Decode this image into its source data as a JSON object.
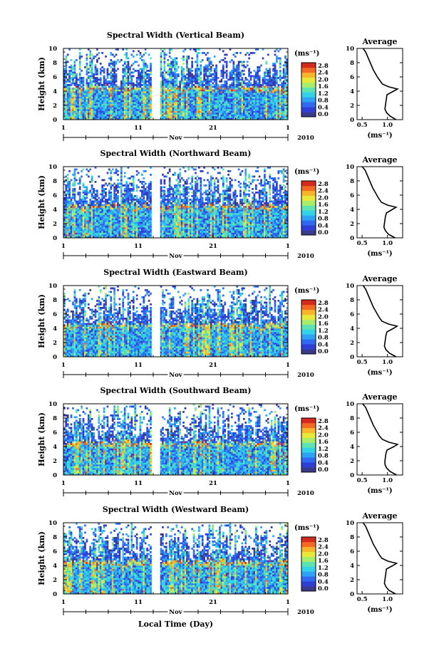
{
  "chart_data": [
    {
      "type": "heatmap",
      "title": "Spectral Width (Vertical Beam)",
      "ylabel": "Height (km)",
      "yticks": [
        "0",
        "2",
        "4",
        "6",
        "8",
        "10"
      ],
      "xticks": [
        "1",
        "11",
        "21",
        "1"
      ],
      "month": "Nov",
      "year": "2010",
      "colorbar": {
        "unit": "(ms⁻¹)",
        "ticks": [
          "0.0",
          "0.4",
          "0.8",
          "1.2",
          "1.6",
          "2.0",
          "2.4",
          "2.8"
        ]
      },
      "average": {
        "title": "Average",
        "xticks": [
          "0.5",
          "1.0"
        ],
        "xlabel": "(ms⁻¹)",
        "profile": [
          [
            0.0,
            1.17
          ],
          [
            0.5,
            1.05
          ],
          [
            1.0,
            0.98
          ],
          [
            1.5,
            0.95
          ],
          [
            2.0,
            0.96
          ],
          [
            2.5,
            0.97
          ],
          [
            3.0,
            0.98
          ],
          [
            3.5,
            0.99
          ],
          [
            4.0,
            1.12
          ],
          [
            4.3,
            1.2
          ],
          [
            4.6,
            1.03
          ],
          [
            5.0,
            0.9
          ],
          [
            5.5,
            0.85
          ],
          [
            6.0,
            0.8
          ],
          [
            6.5,
            0.76
          ],
          [
            7.0,
            0.72
          ],
          [
            7.5,
            0.69
          ],
          [
            8.0,
            0.66
          ],
          [
            8.5,
            0.63
          ],
          [
            9.0,
            0.6
          ],
          [
            9.5,
            0.57
          ],
          [
            10.0,
            0.52
          ]
        ]
      }
    },
    {
      "type": "heatmap",
      "title": "Spectral Width (Northward Beam)",
      "ylabel": "Height (km)",
      "yticks": [
        "0",
        "2",
        "4",
        "6",
        "8",
        "10"
      ],
      "xticks": [
        "1",
        "11",
        "21",
        "1"
      ],
      "month": "Nov",
      "year": "2010",
      "colorbar": {
        "unit": "(ms⁻¹)",
        "ticks": [
          "0.0",
          "0.4",
          "0.8",
          "1.2",
          "1.6",
          "2.0",
          "2.4",
          "2.8"
        ]
      },
      "average": {
        "title": "Average",
        "xticks": [
          "0.5",
          "1.0"
        ],
        "xlabel": "(ms⁻¹)",
        "profile": [
          [
            0.0,
            1.15
          ],
          [
            0.5,
            1.02
          ],
          [
            1.0,
            0.96
          ],
          [
            1.5,
            0.93
          ],
          [
            2.0,
            0.94
          ],
          [
            2.5,
            0.95
          ],
          [
            3.0,
            0.96
          ],
          [
            3.5,
            0.98
          ],
          [
            4.0,
            1.1
          ],
          [
            4.3,
            1.17
          ],
          [
            4.6,
            1.0
          ],
          [
            5.0,
            0.88
          ],
          [
            5.5,
            0.83
          ],
          [
            6.0,
            0.79
          ],
          [
            6.5,
            0.75
          ],
          [
            7.0,
            0.71
          ],
          [
            7.5,
            0.68
          ],
          [
            8.0,
            0.65
          ],
          [
            8.5,
            0.62
          ],
          [
            9.0,
            0.59
          ],
          [
            9.5,
            0.56
          ],
          [
            10.0,
            0.5
          ]
        ]
      }
    },
    {
      "type": "heatmap",
      "title": "Spectral Width (Eastward Beam)",
      "ylabel": "Height (km)",
      "yticks": [
        "0",
        "2",
        "4",
        "6",
        "8",
        "10"
      ],
      "xticks": [
        "1",
        "11",
        "21",
        "1"
      ],
      "month": "Nov",
      "year": "2010",
      "colorbar": {
        "unit": "(ms⁻¹)",
        "ticks": [
          "0.0",
          "0.4",
          "0.8",
          "1.2",
          "1.6",
          "2.0",
          "2.4",
          "2.8"
        ]
      },
      "average": {
        "title": "Average",
        "xticks": [
          "0.5",
          "1.0"
        ],
        "xlabel": "(ms⁻¹)",
        "profile": [
          [
            0.0,
            1.17
          ],
          [
            0.5,
            1.04
          ],
          [
            1.0,
            0.97
          ],
          [
            1.5,
            0.94
          ],
          [
            2.0,
            0.95
          ],
          [
            2.5,
            0.96
          ],
          [
            3.0,
            0.97
          ],
          [
            3.5,
            0.99
          ],
          [
            4.0,
            1.12
          ],
          [
            4.3,
            1.19
          ],
          [
            4.6,
            1.02
          ],
          [
            5.0,
            0.89
          ],
          [
            5.5,
            0.84
          ],
          [
            6.0,
            0.8
          ],
          [
            6.5,
            0.76
          ],
          [
            7.0,
            0.72
          ],
          [
            7.5,
            0.69
          ],
          [
            8.0,
            0.66
          ],
          [
            8.5,
            0.63
          ],
          [
            9.0,
            0.6
          ],
          [
            9.5,
            0.57
          ],
          [
            10.0,
            0.52
          ]
        ]
      }
    },
    {
      "type": "heatmap",
      "title": "Spectral Width (Southward Beam)",
      "ylabel": "Height (km)",
      "yticks": [
        "0",
        "2",
        "4",
        "6",
        "8",
        "10"
      ],
      "xticks": [
        "1",
        "11",
        "21",
        "1"
      ],
      "month": "Nov",
      "year": "2010",
      "colorbar": {
        "unit": "(ms⁻¹)",
        "ticks": [
          "0.0",
          "0.4",
          "0.8",
          "1.2",
          "1.6",
          "2.0",
          "2.4",
          "2.8"
        ]
      },
      "average": {
        "title": "Average",
        "xticks": [
          "0.5",
          "1.0"
        ],
        "xlabel": "(ms⁻¹)",
        "profile": [
          [
            0.0,
            1.18
          ],
          [
            0.5,
            1.05
          ],
          [
            1.0,
            0.98
          ],
          [
            1.5,
            0.95
          ],
          [
            2.0,
            0.95
          ],
          [
            2.5,
            0.96
          ],
          [
            3.0,
            0.97
          ],
          [
            3.5,
            0.99
          ],
          [
            4.0,
            1.13
          ],
          [
            4.3,
            1.2
          ],
          [
            4.6,
            1.03
          ],
          [
            5.0,
            0.9
          ],
          [
            5.5,
            0.84
          ],
          [
            6.0,
            0.8
          ],
          [
            6.5,
            0.76
          ],
          [
            7.0,
            0.72
          ],
          [
            7.5,
            0.69
          ],
          [
            8.0,
            0.66
          ],
          [
            8.5,
            0.63
          ],
          [
            9.0,
            0.6
          ],
          [
            9.5,
            0.57
          ],
          [
            10.0,
            0.51
          ]
        ]
      }
    },
    {
      "type": "heatmap",
      "title": "Spectral Width (Westward Beam)",
      "ylabel": "Height (km)",
      "yticks": [
        "0",
        "2",
        "4",
        "6",
        "8",
        "10"
      ],
      "xticks": [
        "1",
        "11",
        "21",
        "1"
      ],
      "month": "Nov",
      "year": "2010",
      "colorbar": {
        "unit": "(ms⁻¹)",
        "ticks": [
          "0.0",
          "0.4",
          "0.8",
          "1.2",
          "1.6",
          "2.0",
          "2.4",
          "2.8"
        ]
      },
      "average": {
        "title": "Average",
        "xticks": [
          "0.5",
          "1.0"
        ],
        "xlabel": "(ms⁻¹)",
        "profile": [
          [
            0.0,
            1.16
          ],
          [
            0.5,
            1.03
          ],
          [
            1.0,
            0.97
          ],
          [
            1.5,
            0.94
          ],
          [
            2.0,
            0.95
          ],
          [
            2.5,
            0.96
          ],
          [
            3.0,
            0.97
          ],
          [
            3.5,
            0.98
          ],
          [
            4.0,
            1.11
          ],
          [
            4.3,
            1.18
          ],
          [
            4.6,
            1.01
          ],
          [
            5.0,
            0.89
          ],
          [
            5.5,
            0.84
          ],
          [
            6.0,
            0.8
          ],
          [
            6.5,
            0.76
          ],
          [
            7.0,
            0.72
          ],
          [
            7.5,
            0.69
          ],
          [
            8.0,
            0.66
          ],
          [
            8.5,
            0.63
          ],
          [
            9.0,
            0.6
          ],
          [
            9.5,
            0.57
          ],
          [
            10.0,
            0.52
          ]
        ]
      }
    }
  ],
  "xlabel": "Local Time (Day)",
  "colorscale": [
    "#3a3a8c",
    "#2f3fd6",
    "#2f6af0",
    "#2fa2f5",
    "#34d2e6",
    "#5fe3b0",
    "#a8ec6a",
    "#e8e83a",
    "#f7b52c",
    "#f26a24",
    "#d42a1e"
  ]
}
